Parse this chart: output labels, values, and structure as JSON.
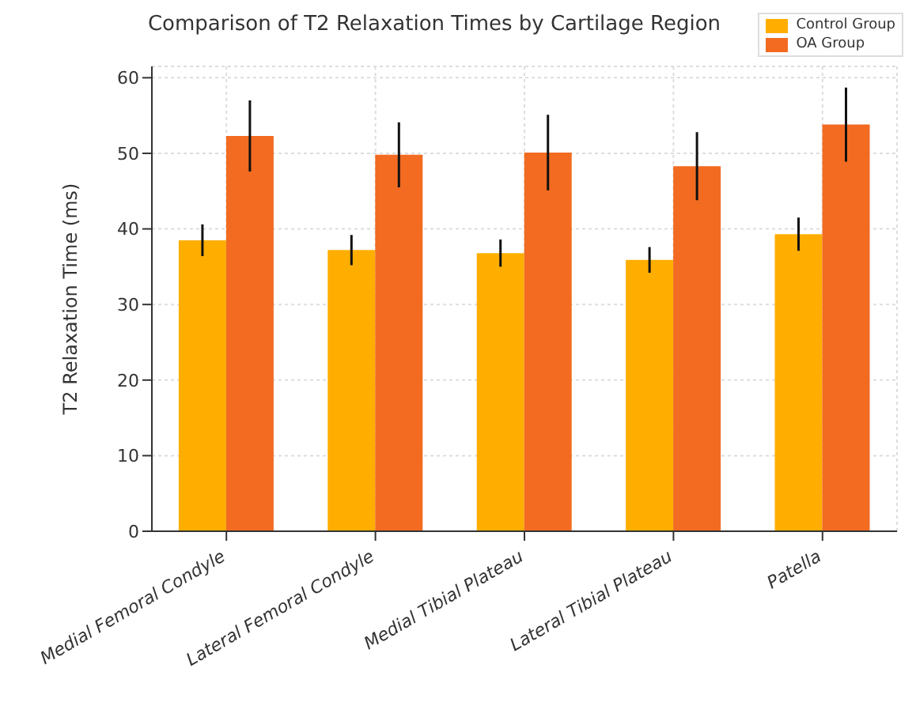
{
  "chart_data": {
    "type": "bar",
    "title": "Comparison of T2 Relaxation Times by Cartilage Region",
    "ylabel": "T2 Relaxation Time (ms)",
    "categories": [
      "Medial Femoral Condyle",
      "Lateral Femoral Condyle",
      "Medial Tibial Plateau",
      "Lateral Tibial Plateau",
      "Patella"
    ],
    "series": [
      {
        "name": "Control Group",
        "color": "#ffae00",
        "values": [
          38.5,
          37.2,
          36.8,
          35.9,
          39.3
        ],
        "errors": [
          2.1,
          2.0,
          1.8,
          1.7,
          2.2
        ]
      },
      {
        "name": "OA Group",
        "color": "#f26b21",
        "values": [
          52.3,
          49.8,
          50.1,
          48.3,
          53.8
        ],
        "errors": [
          4.7,
          4.3,
          5.0,
          4.5,
          4.9
        ]
      }
    ],
    "ylim": [
      0,
      61.5
    ],
    "yticks": [
      0,
      10,
      20,
      30,
      40,
      50,
      60
    ],
    "grid": true,
    "legend": "top right"
  }
}
